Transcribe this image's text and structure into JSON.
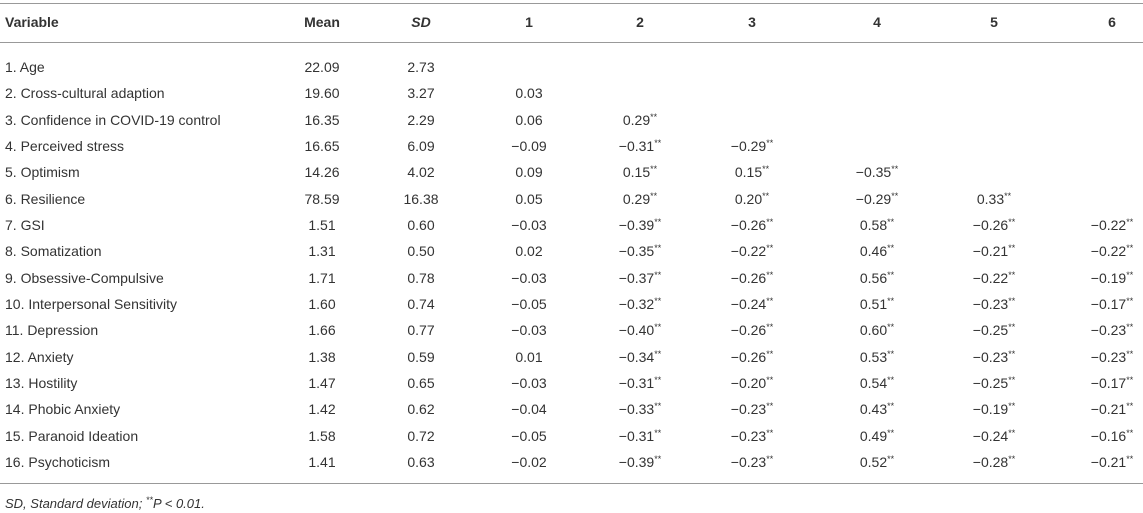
{
  "table": {
    "header": [
      "Variable",
      "Mean",
      "SD",
      "1",
      "2",
      "3",
      "4",
      "5",
      "6"
    ],
    "rows": [
      [
        "1. Age",
        "22.09",
        "2.73"
      ],
      [
        "2. Cross-cultural adaption",
        "19.60",
        "3.27",
        "0.03"
      ],
      [
        "3. Confidence in COVID-19 control",
        "16.35",
        "2.29",
        "0.06",
        "0.29**"
      ],
      [
        "4. Perceived stress",
        "16.65",
        "6.09",
        "−0.09",
        "−0.31**",
        "−0.29**"
      ],
      [
        "5. Optimism",
        "14.26",
        "4.02",
        "0.09",
        "0.15**",
        "0.15**",
        "−0.35**"
      ],
      [
        "6. Resilience",
        "78.59",
        "16.38",
        "0.05",
        "0.29**",
        "0.20**",
        "−0.29**",
        "0.33**"
      ],
      [
        "7. GSI",
        "1.51",
        "0.60",
        "−0.03",
        "−0.39**",
        "−0.26**",
        "0.58**",
        "−0.26**",
        "−0.22**"
      ],
      [
        "8. Somatization",
        "1.31",
        "0.50",
        "0.02",
        "−0.35**",
        "−0.22**",
        "0.46**",
        "−0.21**",
        "−0.22**"
      ],
      [
        "9. Obsessive-Compulsive",
        "1.71",
        "0.78",
        "−0.03",
        "−0.37**",
        "−0.26**",
        "0.56**",
        "−0.22**",
        "−0.19**"
      ],
      [
        "10. Interpersonal Sensitivity",
        "1.60",
        "0.74",
        "−0.05",
        "−0.32**",
        "−0.24**",
        "0.51**",
        "−0.23**",
        "−0.17**"
      ],
      [
        "11. Depression",
        "1.66",
        "0.77",
        "−0.03",
        "−0.40**",
        "−0.26**",
        "0.60**",
        "−0.25**",
        "−0.23**"
      ],
      [
        "12. Anxiety",
        "1.38",
        "0.59",
        "0.01",
        "−0.34**",
        "−0.26**",
        "0.53**",
        "−0.23**",
        "−0.23**"
      ],
      [
        "13. Hostility",
        "1.47",
        "0.65",
        "−0.03",
        "−0.31**",
        "−0.20**",
        "0.54**",
        "−0.25**",
        "−0.17**"
      ],
      [
        "14. Phobic Anxiety",
        "1.42",
        "0.62",
        "−0.04",
        "−0.33**",
        "−0.23**",
        "0.43**",
        "−0.19**",
        "−0.21**"
      ],
      [
        "15. Paranoid Ideation",
        "1.58",
        "0.72",
        "−0.05",
        "−0.31**",
        "−0.23**",
        "0.49**",
        "−0.24**",
        "−0.16**"
      ],
      [
        "16. Psychoticism",
        "1.41",
        "0.63",
        "−0.02",
        "−0.39**",
        "−0.23**",
        "0.52**",
        "−0.28**",
        "−0.21**"
      ]
    ],
    "footnote": "SD, Standard deviation; **P < 0.01."
  }
}
